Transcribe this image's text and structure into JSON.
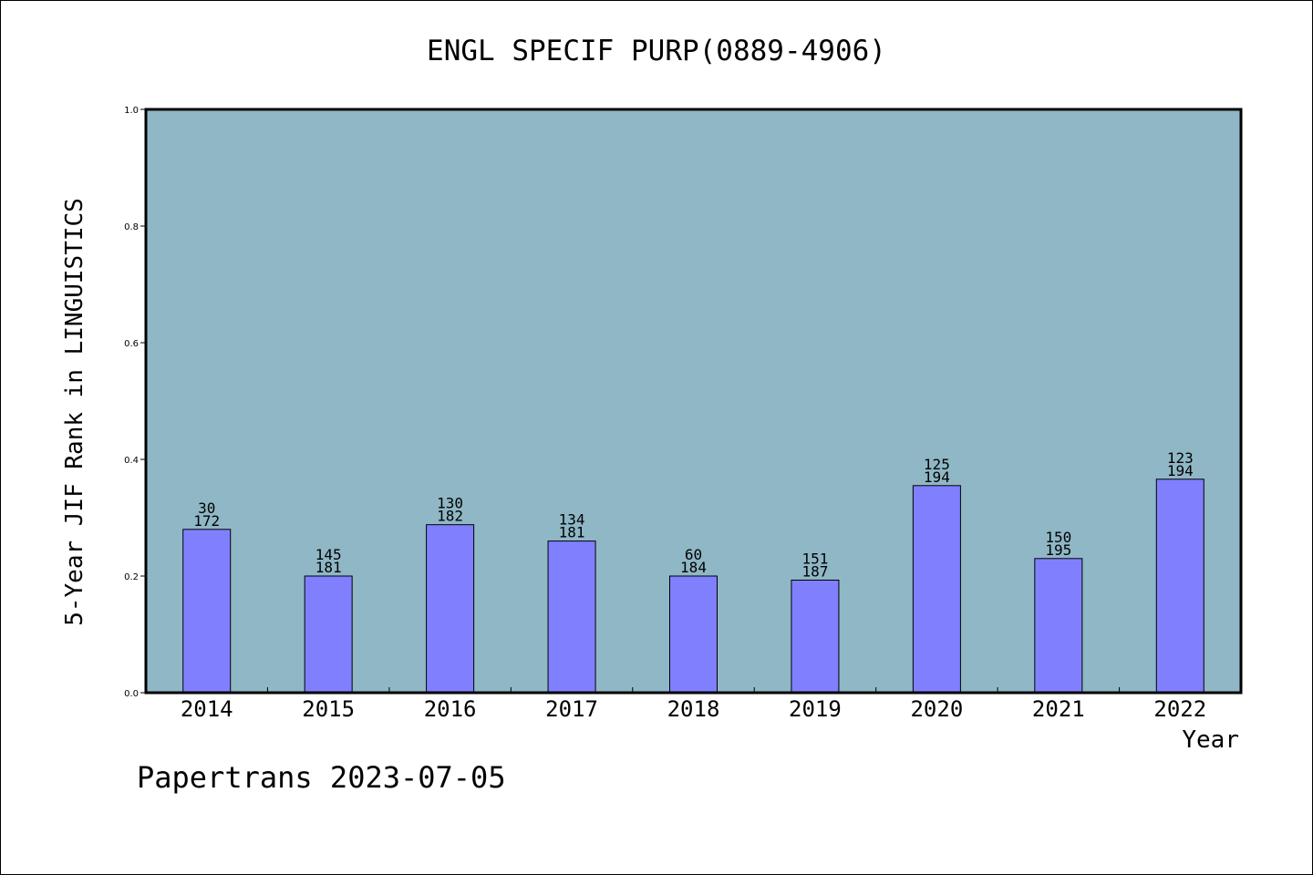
{
  "chart_data": {
    "type": "bar",
    "title": "ENGL SPECIF PURP(0889-4906)",
    "xlabel": "Year",
    "ylabel": "5-Year JIF Rank in LINGUISTICS",
    "ylim": [
      0,
      1.0
    ],
    "yticks": [
      "0.0",
      "0.2",
      "0.4",
      "0.6",
      "0.8",
      "1.0"
    ],
    "categories": [
      "2014",
      "2015",
      "2016",
      "2017",
      "2018",
      "2019",
      "2020",
      "2021",
      "2022"
    ],
    "values": [
      0.28,
      0.2,
      0.288,
      0.26,
      0.2,
      0.193,
      0.355,
      0.23,
      0.366
    ],
    "labels_top": [
      "30",
      "145",
      "130",
      "134",
      "60",
      "151",
      "125",
      "150",
      "123"
    ],
    "labels_bottom": [
      "172",
      "181",
      "182",
      "181",
      "184",
      "187",
      "194",
      "195",
      "194"
    ],
    "grid": false,
    "legend": "none",
    "colors": {
      "plot_bg": "#8fb7c6",
      "bar": "#8080ff"
    }
  },
  "footer": {
    "credit": "Papertrans 2023-07-05"
  }
}
